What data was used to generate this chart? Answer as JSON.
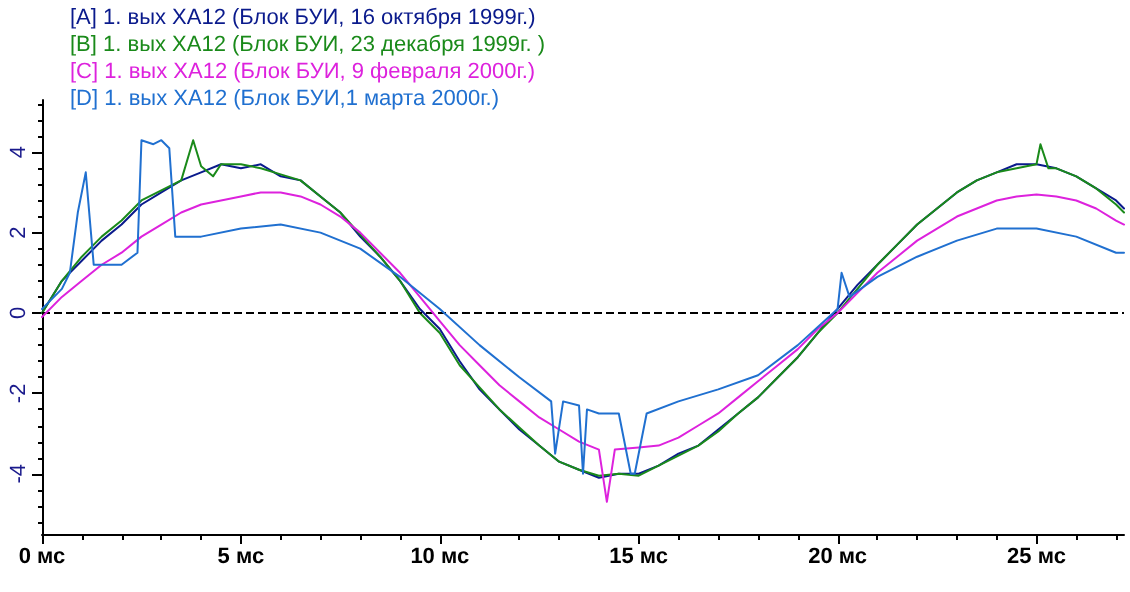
{
  "chart_data": {
    "type": "line",
    "xlim": [
      0,
      27.2
    ],
    "ylim": [
      -5.5,
      5.3
    ],
    "xticks": [
      {
        "value": 0,
        "label": "0 мс"
      },
      {
        "value": 5,
        "label": "5 мс"
      },
      {
        "value": 10,
        "label": "10 мс"
      },
      {
        "value": 15,
        "label": "15 мс"
      },
      {
        "value": 20,
        "label": "20 мс"
      },
      {
        "value": 25,
        "label": "25 мс"
      }
    ],
    "yticks": [
      -4,
      -2,
      0,
      2,
      4
    ],
    "grid": false,
    "legend": "top left",
    "marker": "none",
    "line_style": "solid",
    "ref_lines": [
      {
        "axis": "y",
        "value": 0,
        "label": null,
        "color": "#000000",
        "line_style": "dashed"
      }
    ],
    "series": [
      {
        "name": "[A] 1. вых ХА12 (Блок БУИ, 16 октября 1999г.)",
        "color": "#0a1a8c",
        "x": [
          0,
          0.5,
          1,
          1.5,
          2,
          2.5,
          3,
          3.5,
          4,
          4.5,
          5,
          5.5,
          6,
          6.5,
          7,
          7.5,
          8,
          8.5,
          9,
          9.5,
          10,
          10.5,
          11,
          11.5,
          12,
          12.5,
          13,
          13.5,
          14,
          14.5,
          15,
          15.5,
          16,
          16.5,
          17,
          17.5,
          18,
          18.5,
          19,
          19.5,
          20,
          20.5,
          21,
          21.5,
          22,
          22.5,
          23,
          23.5,
          24,
          24.5,
          25,
          25.5,
          26,
          26.5,
          27,
          27.2
        ],
        "values": [
          0,
          0.8,
          1.3,
          1.8,
          2.2,
          2.7,
          3.0,
          3.3,
          3.5,
          3.7,
          3.6,
          3.7,
          3.4,
          3.3,
          2.9,
          2.5,
          1.9,
          1.4,
          0.8,
          0.1,
          -0.4,
          -1.2,
          -1.9,
          -2.4,
          -2.9,
          -3.3,
          -3.7,
          -3.9,
          -4.1,
          -4.0,
          -4.0,
          -3.8,
          -3.5,
          -3.3,
          -2.9,
          -2.5,
          -2.1,
          -1.6,
          -1.1,
          -0.5,
          0.1,
          0.7,
          1.2,
          1.7,
          2.2,
          2.6,
          3.0,
          3.3,
          3.5,
          3.7,
          3.7,
          3.6,
          3.4,
          3.1,
          2.8,
          2.6
        ]
      },
      {
        "name": "[B] 1. вых ХА12 (Блок БУИ, 23 декабря 1999г. )",
        "color": "#1a8a1a",
        "x": [
          0,
          0.5,
          1,
          1.5,
          2,
          2.5,
          3,
          3.5,
          3.8,
          4,
          4.3,
          4.5,
          5,
          5.5,
          6,
          6.5,
          7,
          7.5,
          8,
          8.5,
          9,
          9.5,
          10,
          10.5,
          11,
          11.5,
          12,
          12.5,
          13,
          13.5,
          14,
          14.5,
          15,
          15.5,
          16,
          16.5,
          17,
          17.5,
          18,
          18.5,
          19,
          19.5,
          20,
          20.5,
          21,
          21.5,
          22,
          22.5,
          23,
          23.5,
          24,
          24.5,
          25,
          25.1,
          25.3,
          25.5,
          26,
          26.5,
          27,
          27.2
        ],
        "values": [
          0,
          0.8,
          1.4,
          1.9,
          2.3,
          2.8,
          3.05,
          3.3,
          4.3,
          3.65,
          3.4,
          3.7,
          3.7,
          3.6,
          3.45,
          3.3,
          2.9,
          2.5,
          1.95,
          1.4,
          0.8,
          0,
          -0.5,
          -1.3,
          -1.85,
          -2.4,
          -2.85,
          -3.3,
          -3.7,
          -3.9,
          -4.05,
          -4.0,
          -4.05,
          -3.8,
          -3.55,
          -3.3,
          -2.95,
          -2.5,
          -2.1,
          -1.6,
          -1.1,
          -0.5,
          0,
          0.6,
          1.2,
          1.7,
          2.2,
          2.6,
          3.0,
          3.3,
          3.5,
          3.6,
          3.7,
          4.2,
          3.6,
          3.6,
          3.4,
          3.1,
          2.7,
          2.5
        ]
      },
      {
        "name": "[C] 1. вых ХА12 (Блок БУИ, 9 февраля 2000г.)",
        "color": "#dd22dd",
        "x": [
          0,
          0.5,
          1,
          1.5,
          2,
          2.5,
          3,
          3.5,
          4,
          4.5,
          5,
          5.5,
          6,
          6.5,
          7,
          7.5,
          8,
          8.5,
          9,
          9.5,
          10,
          10.5,
          11,
          11.5,
          12,
          12.5,
          13,
          13.5,
          14,
          14.2,
          14.4,
          15,
          15.5,
          16,
          16.5,
          17,
          17.5,
          18,
          18.5,
          19,
          19.5,
          20,
          20.5,
          21,
          21.5,
          22,
          22.5,
          23,
          23.5,
          24,
          24.5,
          25,
          25.5,
          26,
          26.5,
          27,
          27.2
        ],
        "values": [
          -0.1,
          0.4,
          0.8,
          1.2,
          1.5,
          1.9,
          2.2,
          2.5,
          2.7,
          2.8,
          2.9,
          3.0,
          3.0,
          2.9,
          2.7,
          2.4,
          2.0,
          1.5,
          1.0,
          0.4,
          -0.2,
          -0.8,
          -1.3,
          -1.8,
          -2.2,
          -2.6,
          -2.9,
          -3.2,
          -3.4,
          -4.7,
          -3.4,
          -3.35,
          -3.3,
          -3.1,
          -2.8,
          -2.5,
          -2.1,
          -1.7,
          -1.3,
          -0.9,
          -0.4,
          0,
          0.5,
          1.0,
          1.4,
          1.8,
          2.1,
          2.4,
          2.6,
          2.8,
          2.9,
          2.95,
          2.9,
          2.8,
          2.6,
          2.3,
          2.2
        ]
      },
      {
        "name": "[D] 1. вых ХА12 (Блок БУИ,1 марта 2000г.)",
        "color": "#2070d0",
        "x": [
          0,
          0.5,
          0.7,
          0.9,
          1.1,
          1.3,
          2,
          2.4,
          2.5,
          2.8,
          3,
          3.2,
          3.35,
          4,
          5,
          6,
          7,
          8,
          9,
          10,
          11,
          12,
          12.8,
          12.9,
          13.1,
          13.5,
          13.6,
          13.7,
          14,
          14.5,
          14.8,
          14.9,
          15.2,
          16,
          17,
          18,
          19,
          20,
          20.1,
          20.3,
          21,
          22,
          23,
          24,
          25,
          26,
          27,
          27.2
        ],
        "values": [
          0.1,
          0.6,
          1.0,
          2.5,
          3.5,
          1.2,
          1.2,
          1.5,
          4.3,
          4.2,
          4.3,
          4.1,
          1.9,
          1.9,
          2.1,
          2.2,
          2.0,
          1.6,
          0.9,
          0.1,
          -0.8,
          -1.6,
          -2.2,
          -3.5,
          -2.2,
          -2.3,
          -4.0,
          -2.4,
          -2.5,
          -2.5,
          -4.0,
          -4.0,
          -2.5,
          -2.2,
          -1.9,
          -1.55,
          -0.8,
          0.1,
          1.0,
          0.4,
          0.9,
          1.4,
          1.8,
          2.1,
          2.1,
          1.9,
          1.5,
          1.5
        ]
      }
    ]
  }
}
